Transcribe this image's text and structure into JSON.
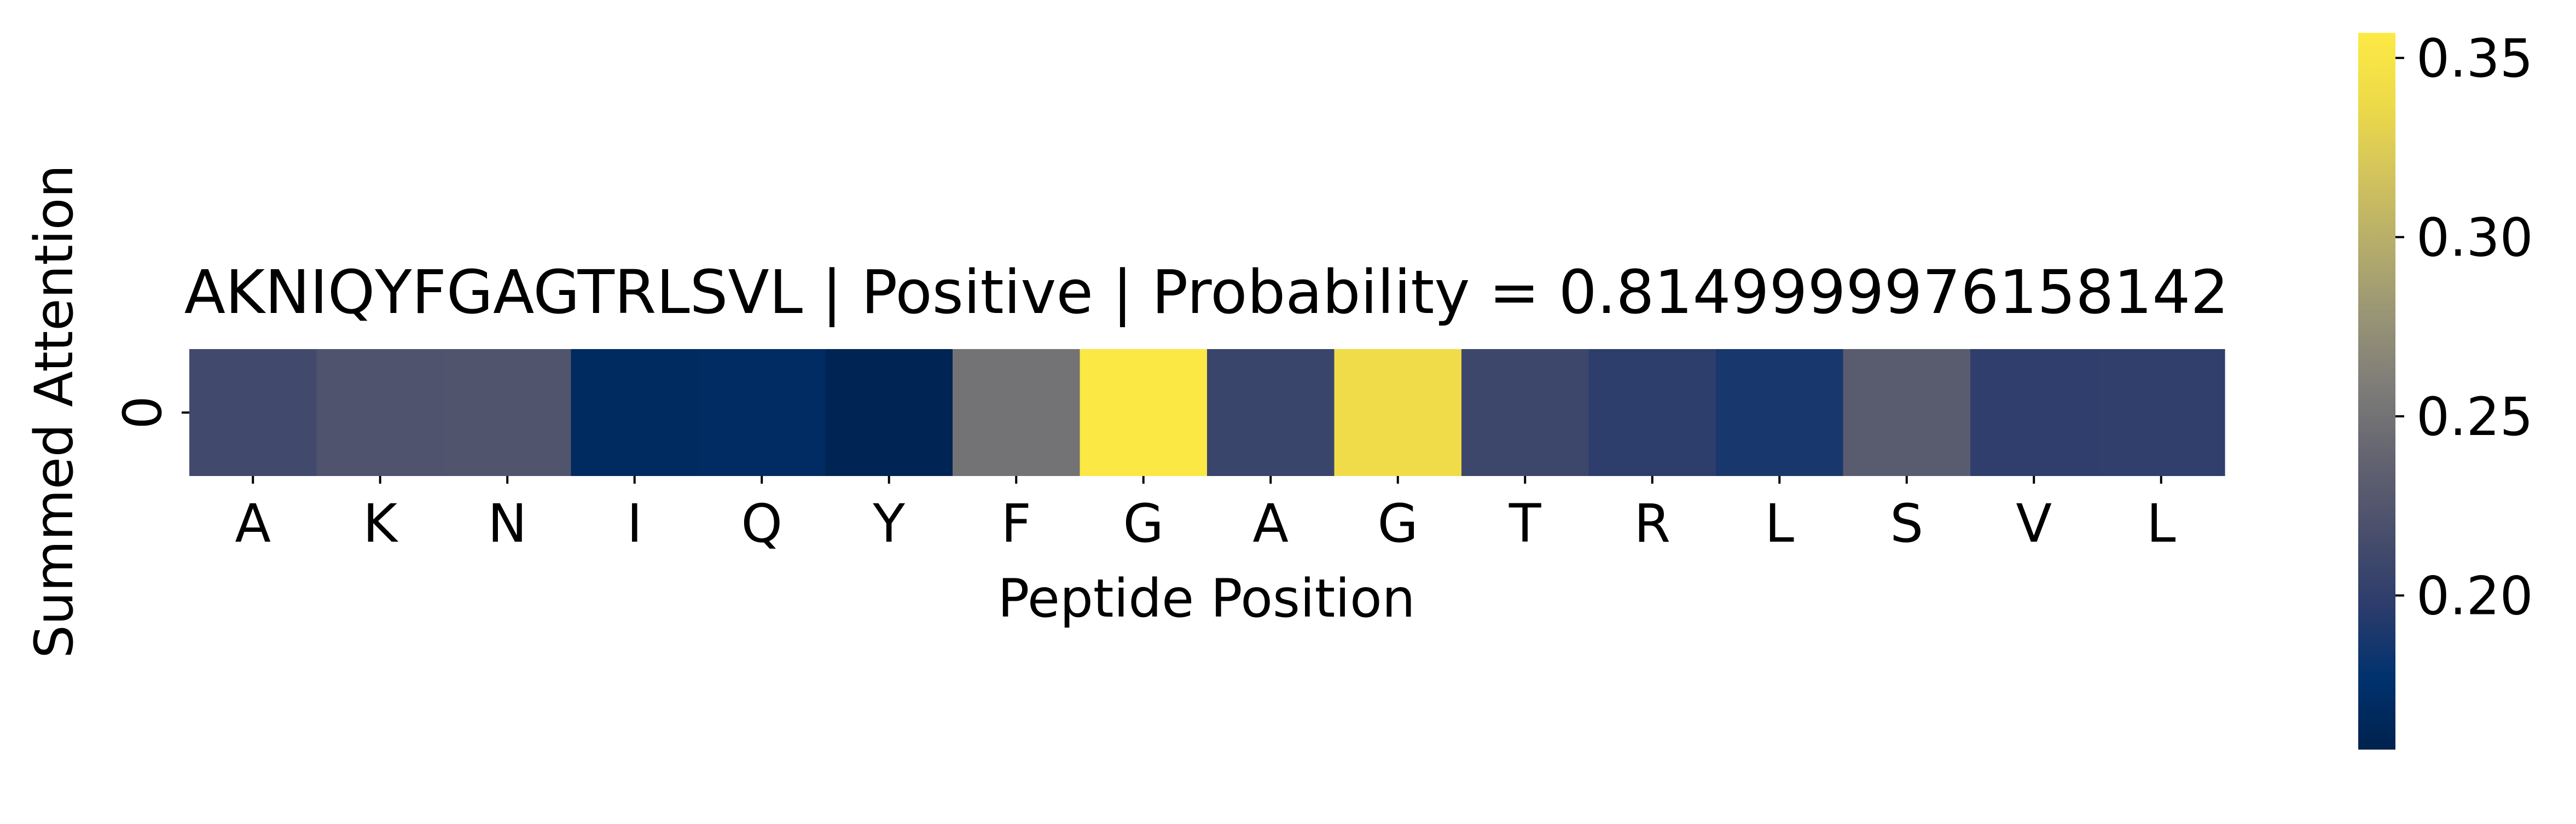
{
  "chart_data": {
    "type": "heatmap",
    "title": "AKNIQYFGAGTRLSVL | Positive | Probability = 0.8149999976158142",
    "xlabel": "Peptide Position",
    "ylabel": "Summed Attention",
    "x_tick_labels": [
      "A",
      "K",
      "N",
      "I",
      "Q",
      "Y",
      "F",
      "G",
      "A",
      "G",
      "T",
      "R",
      "L",
      "S",
      "V",
      "L"
    ],
    "y_tick_labels": [
      "0"
    ],
    "values": [
      [
        0.212,
        0.222,
        0.223,
        0.168,
        0.17,
        0.16,
        0.25,
        0.355,
        0.207,
        0.34,
        0.209,
        0.198,
        0.188,
        0.23,
        0.199,
        0.2
      ]
    ],
    "colormap": "cividis",
    "color_range": [
      0.157,
      0.357
    ],
    "colorbar": {
      "ticks": [
        0.2,
        0.25,
        0.3,
        0.35
      ],
      "tick_labels": [
        "0.20",
        "0.25",
        "0.30",
        "0.35"
      ],
      "placement": "right"
    },
    "grid": false
  }
}
